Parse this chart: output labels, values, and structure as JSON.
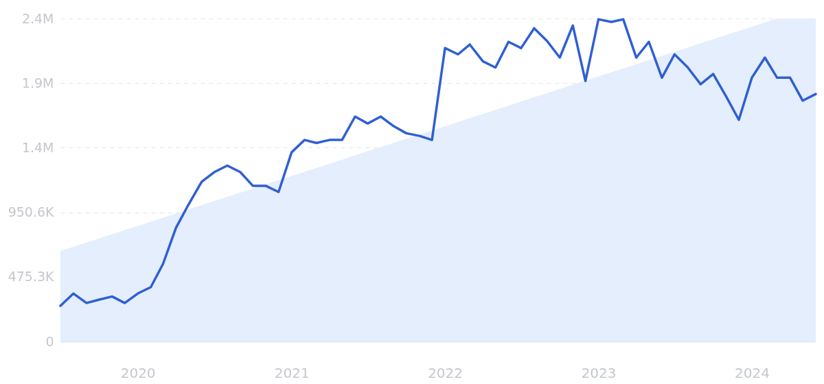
{
  "chart_data": {
    "type": "line",
    "x": [
      "2019-07",
      "2019-08",
      "2019-09",
      "2019-10",
      "2019-11",
      "2019-12",
      "2020-01",
      "2020-02",
      "2020-03",
      "2020-04",
      "2020-05",
      "2020-06",
      "2020-07",
      "2020-08",
      "2020-09",
      "2020-10",
      "2020-11",
      "2020-12",
      "2021-01",
      "2021-02",
      "2021-03",
      "2021-04",
      "2021-05",
      "2021-06",
      "2021-07",
      "2021-08",
      "2021-09",
      "2021-10",
      "2021-11",
      "2021-12",
      "2022-01",
      "2022-02",
      "2022-03",
      "2022-04",
      "2022-05",
      "2022-06",
      "2022-07",
      "2022-08",
      "2022-09",
      "2022-10",
      "2022-11",
      "2022-12",
      "2023-01",
      "2023-02",
      "2023-03",
      "2023-04",
      "2023-05",
      "2023-06",
      "2023-07",
      "2023-08",
      "2023-09",
      "2023-10",
      "2023-11",
      "2023-12",
      "2024-01",
      "2024-02",
      "2024-03",
      "2024-04",
      "2024-05",
      "2024-06"
    ],
    "series": [
      {
        "type": "area",
        "color": "#e4eefc",
        "x": [
          "2019-07",
          "2024-03",
          "2024-06"
        ],
        "values": [
          666000,
          2376500,
          2376500
        ]
      },
      {
        "color": "#2f5fd3",
        "values": [
          262000,
          353000,
          283000,
          308000,
          331000,
          283000,
          353000,
          400000,
          570000,
          837000,
          1009000,
          1175000,
          1246000,
          1294000,
          1246000,
          1145000,
          1145000,
          1100000,
          1392000,
          1483000,
          1461000,
          1483000,
          1483000,
          1655000,
          1604000,
          1655000,
          1584000,
          1532000,
          1513000,
          1483000,
          2159000,
          2113000,
          2185000,
          2062000,
          2016000,
          2205000,
          2159000,
          2305000,
          2210000,
          2089000,
          2325000,
          1917000,
          2371000,
          2351000,
          2371000,
          2089000,
          2205000,
          1941000,
          2113000,
          2018000,
          1893000,
          1968000,
          1802000,
          1631000,
          1941000,
          2089000,
          1941000,
          1941000,
          1772000,
          1821000
        ]
      }
    ],
    "xlim": [
      "2019-07",
      "2024-06"
    ],
    "xticks": [
      {
        "value": "2020",
        "label": "2020"
      },
      {
        "value": "2021",
        "label": "2021"
      },
      {
        "value": "2022",
        "label": "2022"
      },
      {
        "value": "2023",
        "label": "2023"
      },
      {
        "value": "2024",
        "label": "2024"
      }
    ],
    "ylim": [
      0,
      2376500
    ],
    "yticks": [
      {
        "value": 0,
        "label": "0"
      },
      {
        "value": 475300,
        "label": "475.3K"
      },
      {
        "value": 950600,
        "label": "950.6K"
      },
      {
        "value": 1425900,
        "label": "1.4M"
      },
      {
        "value": 1901200,
        "label": "1.9M"
      },
      {
        "value": 2376500,
        "label": "2.4M"
      }
    ],
    "grid": "y",
    "line_style": "solid",
    "marker": "none"
  }
}
